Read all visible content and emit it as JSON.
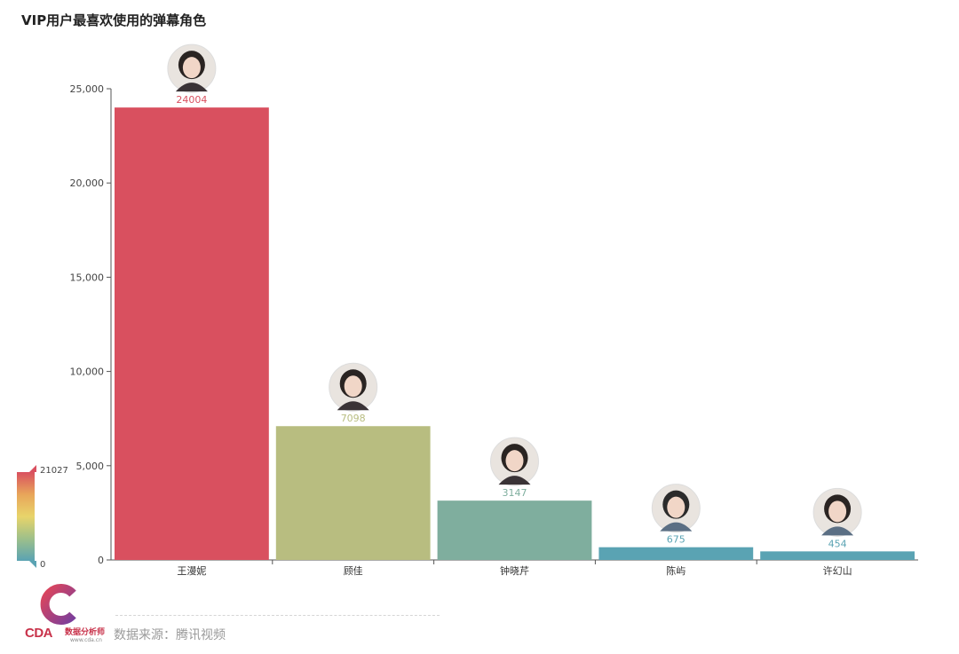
{
  "title": "VIP用户最喜欢使用的弹幕角色",
  "chart_data": {
    "type": "bar",
    "title": "VIP用户最喜欢使用的弹幕角色",
    "categories": [
      "王漫妮",
      "顾佳",
      "钟晓芹",
      "陈屿",
      "许幻山"
    ],
    "values": [
      24004,
      7098,
      3147,
      675,
      454
    ],
    "ylim": [
      0,
      25000
    ],
    "yticks": [
      0,
      5000,
      10000,
      15000,
      20000,
      25000
    ],
    "ytick_labels": [
      "0",
      "5,000",
      "10,000",
      "15,000",
      "20,000",
      "25,000"
    ],
    "grid": false,
    "bar_colors": [
      "#d9505f",
      "#b8bd80",
      "#7fae9e",
      "#5aa3b3",
      "#5aa3b3"
    ],
    "label_colors": [
      "#d9505f",
      "#b8bd80",
      "#7fae9e",
      "#5aa3b3",
      "#5aa3b3"
    ],
    "avatar_icons": [
      "avatar-wang-manni-icon",
      "avatar-gu-jia-icon",
      "avatar-zhong-xiaoqin-icon",
      "avatar-chen-yu-icon",
      "avatar-xu-huanshan-icon"
    ],
    "visual_map": {
      "max_label": "21027",
      "min_label": "0",
      "colors": [
        "#d9505f",
        "#e8a55a",
        "#e8d46a",
        "#9ec08a",
        "#5aa3b3"
      ]
    }
  },
  "footer": {
    "source": "数据来源：腾讯视频",
    "logo_text": "CDA",
    "logo_cn": "数据分析师",
    "logo_url": "www.cda.cn"
  }
}
